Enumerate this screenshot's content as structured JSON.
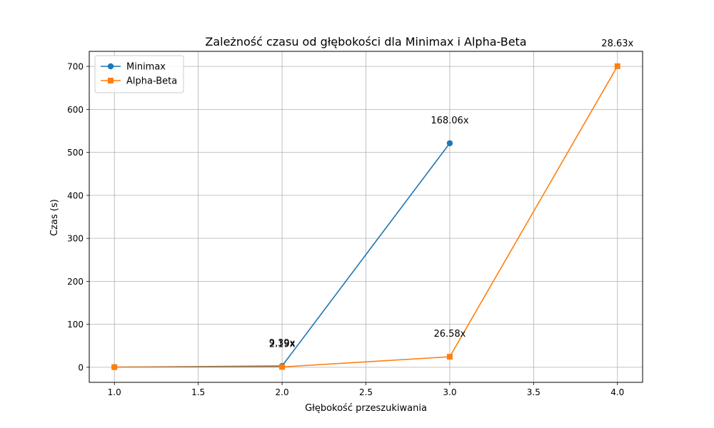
{
  "chart_data": {
    "type": "line",
    "title": "Zależność czasu od głębokości dla Minimax i Alpha-Beta",
    "xlabel": "Głębokość przeszukiwania",
    "ylabel": "Czas (s)",
    "xlim": [
      0.85,
      4.15
    ],
    "ylim": [
      -35,
      735
    ],
    "x_ticks": [
      1.0,
      1.5,
      2.0,
      2.5,
      3.0,
      3.5,
      4.0
    ],
    "x_tick_labels": [
      "1.0",
      "1.5",
      "2.0",
      "2.5",
      "3.0",
      "3.5",
      "4.0"
    ],
    "y_ticks": [
      0,
      100,
      200,
      300,
      400,
      500,
      600,
      700
    ],
    "y_tick_labels": [
      "0",
      "100",
      "200",
      "300",
      "400",
      "500",
      "600",
      "700"
    ],
    "grid": true,
    "legend_position": "top-left",
    "series": [
      {
        "name": "Minimax",
        "color": "#1f77b4",
        "marker": "circle",
        "x": [
          1,
          2,
          3
        ],
        "y": [
          0.33,
          3.1,
          521.3
        ],
        "annotations": [
          {
            "x": 2,
            "y": 3.1,
            "text": "9.39x"
          },
          {
            "x": 3,
            "y": 521.3,
            "text": "168.06x"
          }
        ]
      },
      {
        "name": "Alpha-Beta",
        "color": "#ff7f0e",
        "marker": "square",
        "x": [
          1,
          2,
          3,
          4
        ],
        "y": [
          0.41,
          0.9,
          24.5,
          700.5
        ],
        "annotations": [
          {
            "x": 2,
            "y": 0.9,
            "text": "2.19x"
          },
          {
            "x": 3,
            "y": 24.5,
            "text": "26.58x"
          },
          {
            "x": 4,
            "y": 700.5,
            "text": "28.63x"
          }
        ]
      }
    ]
  }
}
